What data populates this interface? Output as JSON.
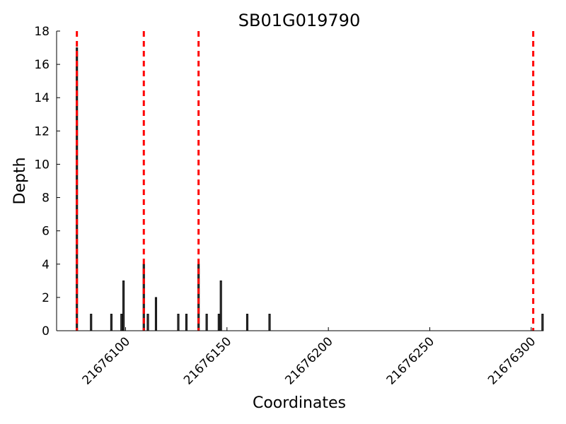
{
  "chart_data": {
    "type": "bar",
    "title": "SB01G019790",
    "xlabel": "Coordinates",
    "ylabel": "Depth",
    "xlim": [
      21676066,
      21676306
    ],
    "ylim": [
      0,
      18
    ],
    "grid": false,
    "legend": "none",
    "x_ticks": [
      21676100,
      21676150,
      21676200,
      21676250,
      21676300
    ],
    "y_ticks": [
      0,
      2,
      4,
      6,
      8,
      10,
      12,
      14,
      16,
      18
    ],
    "bars": {
      "x": [
        21676076,
        21676083,
        21676093,
        21676098,
        21676099,
        21676109,
        21676111,
        21676115,
        21676126,
        21676130,
        21676136,
        21676140,
        21676146,
        21676147,
        21676160,
        21676171,
        21676310
      ],
      "values": [
        17,
        1,
        1,
        1,
        3,
        4,
        1,
        2,
        1,
        1,
        4,
        1,
        1,
        3,
        1,
        1,
        1
      ],
      "bar_color": "#333333",
      "edge_color": "#000000"
    },
    "exon_boundaries": {
      "x": [
        21676076,
        21676109,
        21676136,
        21676301
      ],
      "color": "#ff0000",
      "style": "dashed"
    }
  }
}
